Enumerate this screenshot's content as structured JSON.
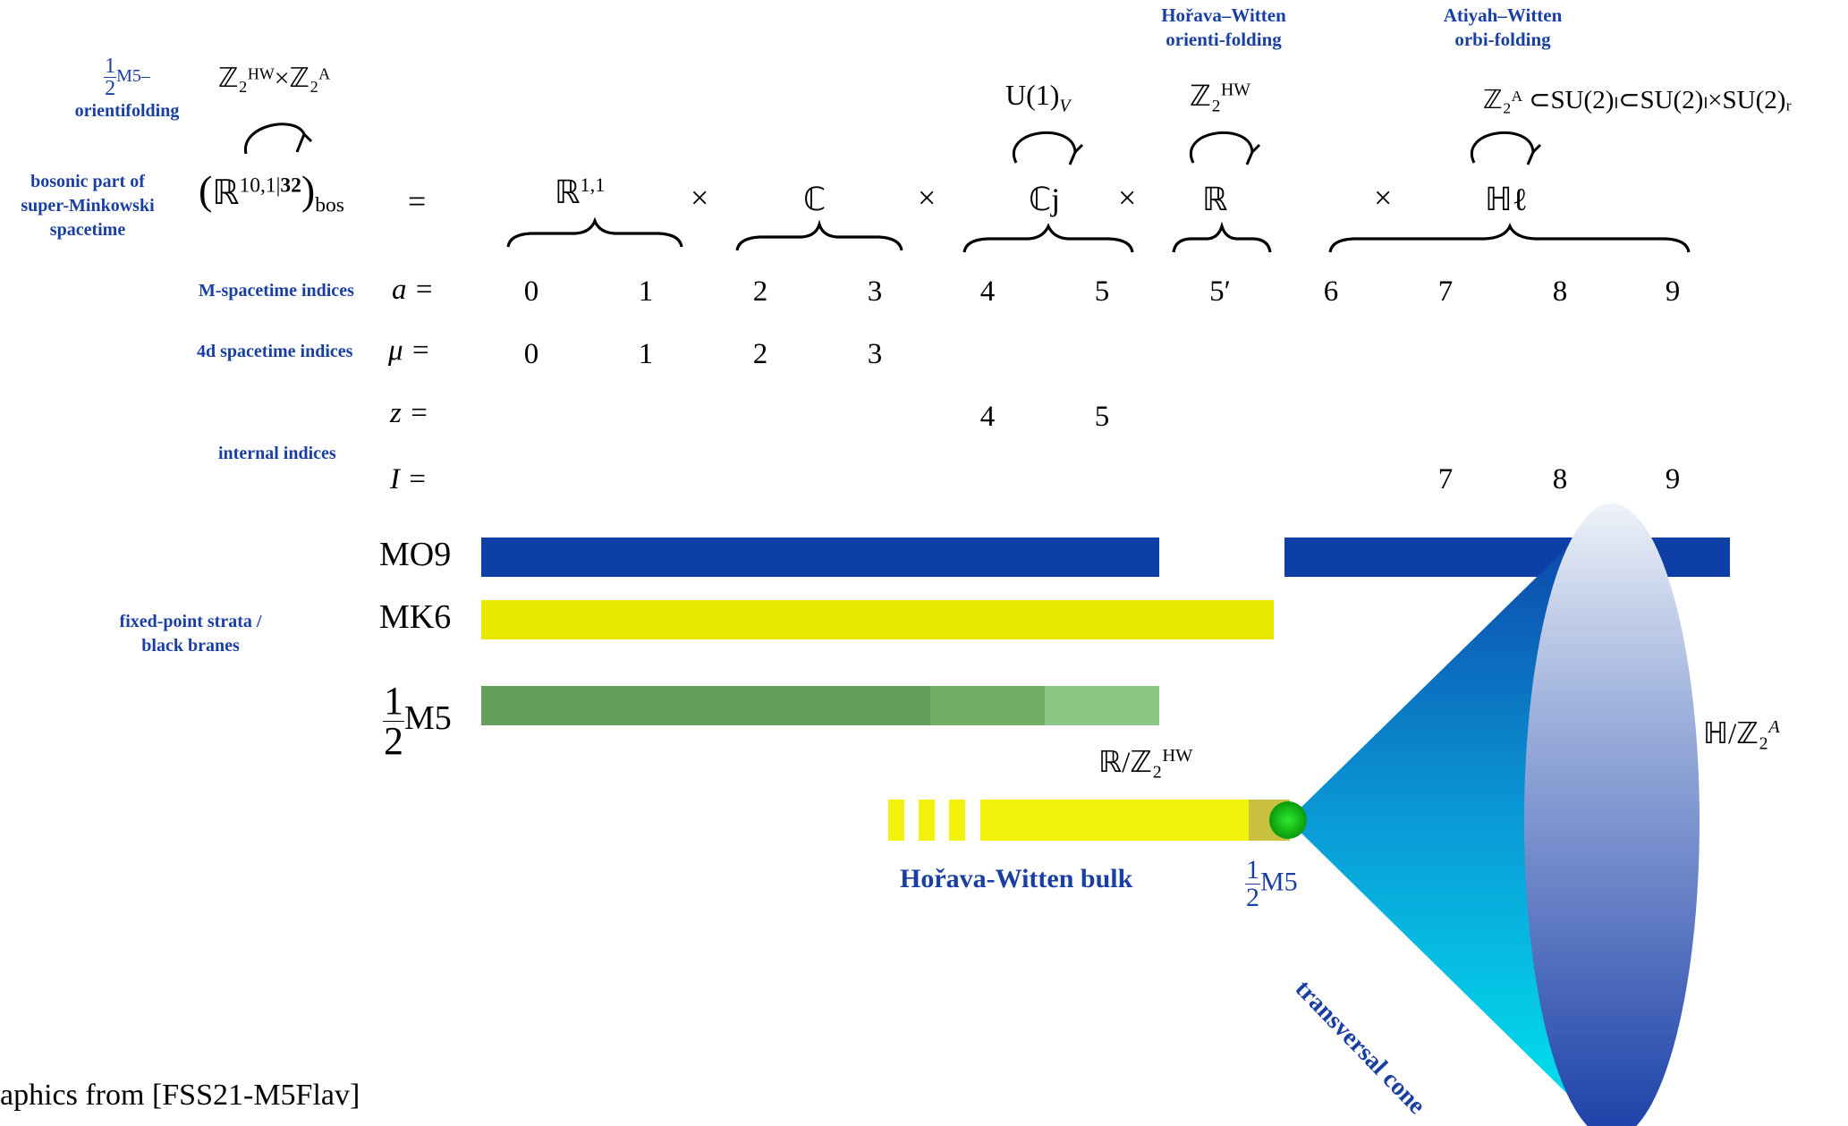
{
  "header_labels": {
    "hw_orientifolding": [
      "Hořava–Witten",
      "orienti-folding"
    ],
    "aw_orbifolding": [
      "Atiyah–Witten",
      "orbi-folding"
    ],
    "half_m5_orientifolding_frac_num": "1",
    "half_m5_orientifolding_frac_den": "2",
    "half_m5_orientifolding_rest": "M5–",
    "half_m5_orientifolding_line2": "orientifolding",
    "bosonic_part": [
      "bosonic part of",
      "super-Minkowski",
      "spacetime"
    ]
  },
  "groups": {
    "z2hw_z2a": "ℤ₂ᴴᵂ×ℤ₂ᴬ",
    "u1v": "U(1)",
    "u1v_sub": "V",
    "z2hw": "ℤ₂",
    "z2hw_sup": "HW",
    "aw_group": "⊂SU(2)",
    "aw_group_full": "ℤ₂ᴬ ⊂SU(2)ₗ⊂SU(2)ₗ×SU(2)ᵣ"
  },
  "equation": {
    "lhs_open": "(",
    "lhs_R": "ℝ",
    "lhs_sup": "10,1|",
    "lhs_sup_bold": "32",
    "lhs_close": ")",
    "lhs_sub": "bos",
    "equals": "=",
    "factors": [
      "ℝ",
      "ℂ",
      "ℂj",
      "ℝ",
      "ℍℓ"
    ],
    "factor0_sup": "1,1",
    "times": "×"
  },
  "index_rows": [
    {
      "label_blue": "M-spacetime indices",
      "symbol": "a =",
      "values": [
        "0",
        "1",
        "2",
        "3",
        "4",
        "5",
        "5′",
        "6",
        "7",
        "8",
        "9"
      ]
    },
    {
      "label_blue": "4d spacetime indices",
      "symbol": "μ =",
      "values": [
        "0",
        "1",
        "2",
        "3"
      ]
    },
    {
      "label_blue": "",
      "symbol": "z =",
      "values": [
        "4",
        "5"
      ]
    },
    {
      "label_blue": "internal indices",
      "symbol": "I =",
      "values": [
        "7",
        "8",
        "9"
      ]
    }
  ],
  "strata": {
    "label": [
      "fixed-point strata /",
      "black branes"
    ],
    "mo9": "MO9",
    "mk6": "MK6",
    "half_m5": "M5",
    "half_num": "1",
    "half_den": "2"
  },
  "bottom": {
    "r_mod_z2hw": "ℝ/ℤ₂",
    "r_mod_sup": "HW",
    "hw_bulk": "Hořava-Witten bulk",
    "half_m5": "M5",
    "transversal_cone": "transversal cone",
    "h_mod_z2a": "ℍ/ℤ₂",
    "h_mod_sup": "A",
    "credit": "aphics from [FSS21-M5Flav]"
  },
  "colors": {
    "blue_bar": "#0d3fa6",
    "yellow_bar": "#e9e900",
    "green_dark": "#639e5a",
    "green_mid": "#73ae68",
    "green_light": "#8dc785",
    "label_blue": "#1a3fa3",
    "green_dot": "#22c022"
  }
}
